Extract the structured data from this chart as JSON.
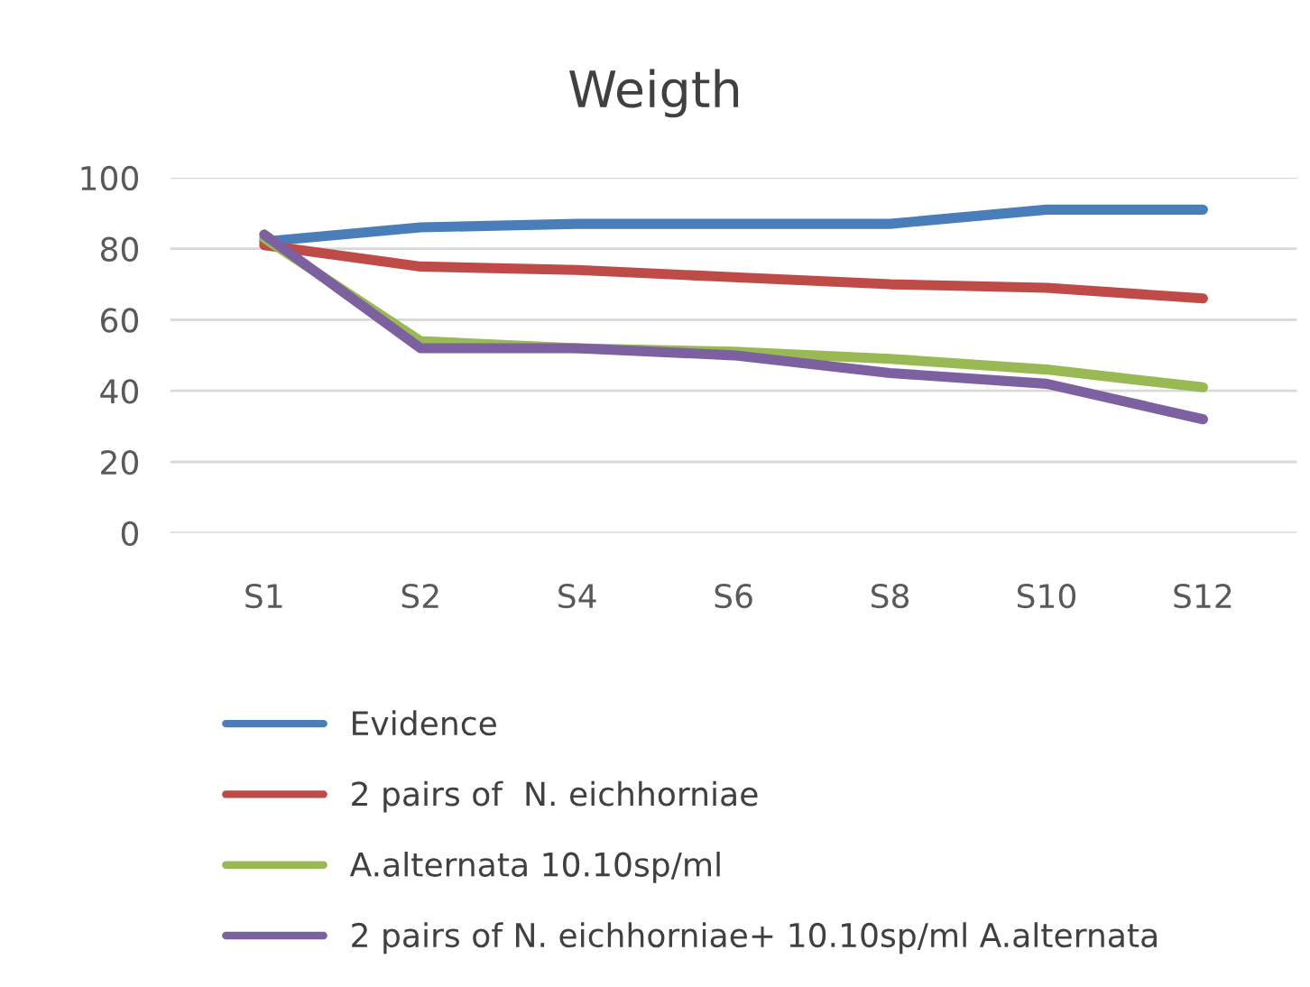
{
  "chart_data": {
    "type": "line",
    "title": "Weigth",
    "categories": [
      "S1",
      "S2",
      "S4",
      "S6",
      "S8",
      "S10",
      "S12"
    ],
    "series": [
      {
        "name": "Evidence",
        "color": "#4a7ebb",
        "values": [
          82,
          86,
          87,
          87,
          87,
          91,
          91
        ]
      },
      {
        "name": "2 pairs of  N. eichhorniae",
        "color": "#be4b48",
        "values": [
          81,
          75,
          74,
          72,
          70,
          69,
          66
        ]
      },
      {
        "name": "A.alternata 10.10sp/ml",
        "color": "#98b954",
        "values": [
          83,
          54,
          52,
          51,
          49,
          46,
          41
        ]
      },
      {
        "name": "2 pairs of N. eichhorniae+ 10.10sp/ml A.alternata",
        "color": "#7d60a0",
        "values": [
          84,
          52,
          52,
          50,
          45,
          42,
          32
        ]
      }
    ],
    "ylim": [
      0,
      100
    ],
    "yticks": [
      0,
      20,
      40,
      60,
      80,
      100
    ],
    "grid": "y",
    "legend": "bottom",
    "marker": "none",
    "line_style": "solid"
  }
}
